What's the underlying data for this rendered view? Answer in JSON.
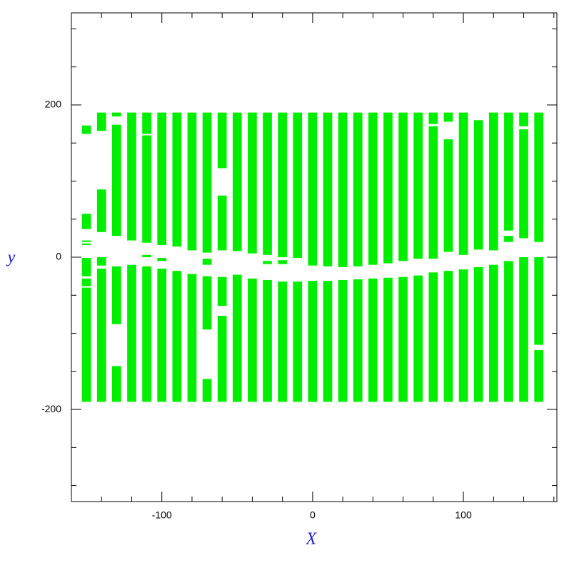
{
  "chart_data": {
    "type": "strips",
    "x_label": "X",
    "y_label": "y",
    "xlim": [
      -160,
      162
    ],
    "ylim": [
      -321,
      321
    ],
    "xticks": [
      -100,
      0,
      100
    ],
    "yticks": [
      -200,
      0,
      200
    ],
    "xminorticks": [
      -140,
      -120,
      -80,
      -60,
      -40,
      -20,
      20,
      40,
      60,
      80,
      120,
      140,
      160
    ],
    "yminorticks": [
      -300,
      -250,
      -150,
      -100,
      -50,
      50,
      100,
      150,
      250,
      300
    ],
    "strip_width": 6,
    "color": "#00ee00",
    "strips": [
      {
        "x": -150,
        "segments": [
          [
            -190,
            -40
          ],
          [
            -38,
            -28
          ],
          [
            -25,
            -1
          ],
          [
            16,
            18
          ],
          [
            20,
            22
          ],
          [
            37,
            57
          ],
          [
            162,
            173
          ]
        ]
      },
      {
        "x": -140,
        "segments": [
          [
            -190,
            -15
          ],
          [
            -11,
            0
          ],
          [
            33,
            89
          ],
          [
            166,
            190
          ]
        ]
      },
      {
        "x": -130,
        "segments": [
          [
            -190,
            -143
          ],
          [
            -88,
            -12
          ],
          [
            28,
            174
          ],
          [
            185,
            190
          ]
        ]
      },
      {
        "x": -120,
        "segments": [
          [
            -190,
            -10
          ],
          [
            22,
            190
          ]
        ]
      },
      {
        "x": -110,
        "segments": [
          [
            -190,
            -12
          ],
          [
            0,
            3
          ],
          [
            19,
            160
          ],
          [
            162,
            190
          ]
        ]
      },
      {
        "x": -100,
        "segments": [
          [
            -190,
            -15
          ],
          [
            -5,
            -1
          ],
          [
            16,
            190
          ]
        ]
      },
      {
        "x": -90,
        "segments": [
          [
            -190,
            -18
          ],
          [
            14,
            190
          ]
        ]
      },
      {
        "x": -80,
        "segments": [
          [
            -190,
            -22
          ],
          [
            9,
            190
          ]
        ]
      },
      {
        "x": -70,
        "segments": [
          [
            -190,
            -160
          ],
          [
            -95,
            -25
          ],
          [
            -10,
            -2
          ],
          [
            6,
            190
          ]
        ]
      },
      {
        "x": -60,
        "segments": [
          [
            -190,
            -77
          ],
          [
            -64,
            -26
          ],
          [
            9,
            81
          ],
          [
            117,
            190
          ]
        ]
      },
      {
        "x": -50,
        "segments": [
          [
            -190,
            -23
          ],
          [
            8,
            190
          ]
        ]
      },
      {
        "x": -40,
        "segments": [
          [
            -190,
            -28
          ],
          [
            5,
            190
          ]
        ]
      },
      {
        "x": -30,
        "segments": [
          [
            -190,
            -30
          ],
          [
            -9,
            -5
          ],
          [
            3,
            190
          ]
        ]
      },
      {
        "x": -20,
        "segments": [
          [
            -190,
            -32
          ],
          [
            -9,
            -4
          ],
          [
            0,
            190
          ]
        ]
      },
      {
        "x": -10,
        "segments": [
          [
            -190,
            -32
          ],
          [
            -1,
            190
          ]
        ]
      },
      {
        "x": 0,
        "segments": [
          [
            -190,
            -31
          ],
          [
            -11,
            190
          ]
        ]
      },
      {
        "x": 10,
        "segments": [
          [
            -190,
            -31
          ],
          [
            -12,
            190
          ]
        ]
      },
      {
        "x": 20,
        "segments": [
          [
            -190,
            -30
          ],
          [
            -13,
            190
          ]
        ]
      },
      {
        "x": 30,
        "segments": [
          [
            -190,
            -29
          ],
          [
            -12,
            190
          ]
        ]
      },
      {
        "x": 40,
        "segments": [
          [
            -190,
            -28
          ],
          [
            -10,
            190
          ]
        ]
      },
      {
        "x": 50,
        "segments": [
          [
            -190,
            -27
          ],
          [
            -8,
            190
          ]
        ]
      },
      {
        "x": 60,
        "segments": [
          [
            -190,
            -26
          ],
          [
            -5,
            190
          ]
        ]
      },
      {
        "x": 70,
        "segments": [
          [
            -190,
            -24
          ],
          [
            -2,
            190
          ]
        ]
      },
      {
        "x": 80,
        "segments": [
          [
            -190,
            -20
          ],
          [
            -2,
            172
          ],
          [
            175,
            190
          ]
        ]
      },
      {
        "x": 90,
        "segments": [
          [
            -190,
            -18
          ],
          [
            7,
            155
          ],
          [
            178,
            190
          ]
        ]
      },
      {
        "x": 100,
        "segments": [
          [
            -190,
            -16
          ],
          [
            3,
            190
          ]
        ]
      },
      {
        "x": 110,
        "segments": [
          [
            -190,
            -13
          ],
          [
            10,
            180
          ]
        ]
      },
      {
        "x": 120,
        "segments": [
          [
            -190,
            -10
          ],
          [
            9,
            190
          ]
        ]
      },
      {
        "x": 130,
        "segments": [
          [
            -190,
            -5
          ],
          [
            20,
            28
          ],
          [
            35,
            190
          ]
        ]
      },
      {
        "x": 140,
        "segments": [
          [
            -190,
            0
          ],
          [
            25,
            168
          ],
          [
            172,
            190
          ]
        ]
      },
      {
        "x": 150,
        "segments": [
          [
            -190,
            -122
          ],
          [
            -115,
            0
          ],
          [
            20,
            190
          ]
        ]
      }
    ]
  }
}
